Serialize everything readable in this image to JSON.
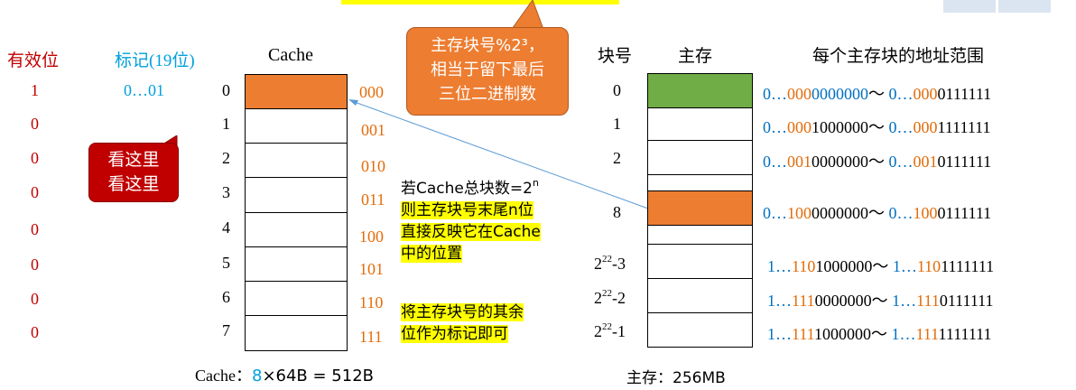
{
  "slide": {
    "colors": {
      "cache_highlight": "#ed7d31",
      "mem_block0": "#70ad47",
      "mem_block8": "#ed7d31",
      "callout_orange": "#ed7d31",
      "callout_red": "#c00000",
      "highlight": "#ffff00"
    },
    "headers": {
      "valid_bit": "有效位",
      "tag": "标记(19位)",
      "cache": "Cache",
      "block_no": "块号",
      "main_memory": "主存",
      "address_range": "每个主存块的地址范围"
    },
    "valid_bits": [
      "1",
      "0",
      "0",
      "0",
      "0",
      "0",
      "0",
      "0"
    ],
    "tag_value": "0…01",
    "cache_lines": [
      {
        "index": "0",
        "binary": "000"
      },
      {
        "index": "1",
        "binary": "001"
      },
      {
        "index": "2",
        "binary": "010"
      },
      {
        "index": "3",
        "binary": "011"
      },
      {
        "index": "4",
        "binary": "100"
      },
      {
        "index": "5",
        "binary": "101"
      },
      {
        "index": "6",
        "binary": "110"
      },
      {
        "index": "7",
        "binary": "111"
      }
    ],
    "cache_caption": {
      "prefix": "Cache：",
      "count": "8",
      "suffix": "×64B = 512B"
    },
    "memory_caption": "主存：256MB",
    "memory_blocks": [
      {
        "label": "0",
        "start": {
          "a": "0…",
          "b": "000",
          "c": "0000000"
        },
        "end": {
          "a": "0…",
          "b": "000",
          "c": "0111111"
        }
      },
      {
        "label": "1",
        "start": {
          "a": "0…",
          "b": "000",
          "c": "1000000"
        },
        "end": {
          "a": "0…",
          "b": "000",
          "c": "1111111"
        }
      },
      {
        "label": "2",
        "start": {
          "a": "0…",
          "b": "001",
          "c": "0000000"
        },
        "end": {
          "a": "0…",
          "b": "001",
          "c": "0111111"
        }
      },
      {
        "label": "8",
        "start": {
          "a": "0…",
          "b": "100",
          "c": "0000000"
        },
        "end": {
          "a": "0…",
          "b": "100",
          "c": "0111111"
        }
      },
      {
        "label_base": "2",
        "label_exp": "22",
        "label_tail": "-3",
        "start": {
          "a": "1…",
          "b": "110",
          "c": "1000000"
        },
        "end": {
          "a": "1…",
          "b": "110",
          "c": "1111111"
        }
      },
      {
        "label_base": "2",
        "label_exp": "22",
        "label_tail": "-2",
        "start": {
          "a": "1…",
          "b": "111",
          "c": "0000000"
        },
        "end": {
          "a": "1…",
          "b": "111",
          "c": "0111111"
        }
      },
      {
        "label_base": "2",
        "label_exp": "22",
        "label_tail": "-1",
        "start": {
          "a": "1…",
          "b": "111",
          "c": "1000000"
        },
        "end": {
          "a": "1…",
          "b": "111",
          "c": "1111111"
        }
      }
    ],
    "range_sep": "～",
    "callout_orange": [
      "主存块号%2³，",
      "相当于留下最后",
      "三位二进制数"
    ],
    "callout_red": [
      "看这里",
      "看这里"
    ],
    "note1": {
      "line1_prefix": "若Cache总块数=2",
      "line1_exp": "n",
      "line2": "则主存块号末尾n位",
      "line3": "直接反映它在Cache",
      "line4": "中的位置"
    },
    "note2": [
      "将主存块号的其余",
      "位作为标记即可"
    ]
  }
}
